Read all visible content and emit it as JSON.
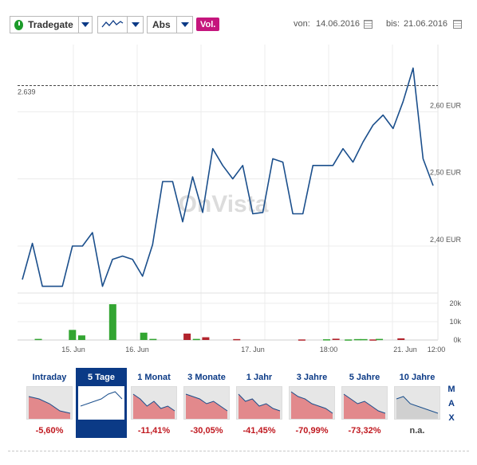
{
  "toolbar": {
    "exchange": "Tradegate",
    "price_type": "Abs",
    "vol_label": "Vol.",
    "from_label": "von:",
    "from_date": "14.06.2016",
    "to_label": "bis:",
    "to_date": "21.06.2016",
    "icons": {
      "live": "live-status-icon",
      "chart_type": "line-chart-icon",
      "calendar": "calendar-icon"
    }
  },
  "watermark": "OnVista",
  "colors": {
    "line": "#1b4f8c",
    "vol_up": "#33a532",
    "vol_down": "#b2242d",
    "accent": "#0b3a86",
    "vol_button": "#c5167d",
    "negative": "#c0181f"
  },
  "chart_data": [
    {
      "type": "line",
      "ylim": [
        2.33,
        2.7
      ],
      "yticks": [
        2.4,
        2.5,
        2.6
      ],
      "ytick_labels": [
        "2,40 EUR",
        "2,50 EUR",
        "2,60 EUR"
      ],
      "reference_line": {
        "value": 2.639,
        "label": "2.639",
        "style": "dashed"
      },
      "xtick_labels": [
        "15. Jun",
        "16. Jun",
        "17. Jun",
        "18:00",
        "21. Jun",
        "12:00"
      ],
      "grid": true,
      "values": [
        2.35,
        2.404,
        2.34,
        2.34,
        2.34,
        2.4,
        2.4,
        2.42,
        2.34,
        2.38,
        2.385,
        2.38,
        2.355,
        2.402,
        2.496,
        2.496,
        2.436,
        2.503,
        2.45,
        2.545,
        2.52,
        2.5,
        2.52,
        2.448,
        2.45,
        2.53,
        2.525,
        2.448,
        2.448,
        2.52,
        2.52,
        2.52,
        2.545,
        2.525,
        2.555,
        2.58,
        2.595,
        2.575,
        2.615,
        2.665,
        2.53,
        2.49
      ]
    },
    {
      "type": "bar",
      "ylim": [
        0,
        23000
      ],
      "ytick_labels": [
        "20k",
        "10k",
        "0k"
      ],
      "yticks": [
        20000,
        10000,
        0
      ],
      "bars": [
        {
          "x": 4,
          "value": 600,
          "dir": "up"
        },
        {
          "x": 15,
          "value": 5500,
          "dir": "up"
        },
        {
          "x": 18,
          "value": 2500,
          "dir": "up"
        },
        {
          "x": 28,
          "value": 19500,
          "dir": "up"
        },
        {
          "x": 38,
          "value": 4000,
          "dir": "up"
        },
        {
          "x": 41,
          "value": 600,
          "dir": "up"
        },
        {
          "x": 52,
          "value": 3500,
          "dir": "down"
        },
        {
          "x": 55,
          "value": 600,
          "dir": "up"
        },
        {
          "x": 58,
          "value": 1500,
          "dir": "down"
        },
        {
          "x": 68,
          "value": 500,
          "dir": "down"
        },
        {
          "x": 89,
          "value": 300,
          "dir": "down"
        },
        {
          "x": 97,
          "value": 400,
          "dir": "up"
        },
        {
          "x": 100,
          "value": 700,
          "dir": "down"
        },
        {
          "x": 104,
          "value": 300,
          "dir": "up"
        },
        {
          "x": 107,
          "value": 500,
          "dir": "up"
        },
        {
          "x": 109,
          "value": 500,
          "dir": "up"
        },
        {
          "x": 112,
          "value": 300,
          "dir": "down"
        },
        {
          "x": 114,
          "value": 600,
          "dir": "up"
        },
        {
          "x": 121,
          "value": 900,
          "dir": "down"
        }
      ],
      "x_range": [
        0,
        132
      ]
    }
  ],
  "periods": {
    "items": [
      {
        "label": "Intraday",
        "change": "-5,60%",
        "active": false,
        "trend": [
          0.2,
          0.3,
          0.5,
          0.8,
          0.9
        ]
      },
      {
        "label": "5 Tage",
        "change": "",
        "active": true,
        "trend": [
          0.6,
          0.5,
          0.4,
          0.3,
          0.1,
          0.0,
          0.3
        ]
      },
      {
        "label": "1 Monat",
        "change": "-11,41%",
        "active": false,
        "trend": [
          0.1,
          0.3,
          0.6,
          0.4,
          0.7,
          0.6,
          0.8
        ]
      },
      {
        "label": "3 Monate",
        "change": "-30,05%",
        "active": false,
        "trend": [
          0.1,
          0.2,
          0.3,
          0.5,
          0.4,
          0.6,
          0.8
        ]
      },
      {
        "label": "1 Jahr",
        "change": "-41,45%",
        "active": false,
        "trend": [
          0.1,
          0.4,
          0.3,
          0.6,
          0.5,
          0.7,
          0.8
        ]
      },
      {
        "label": "3 Jahre",
        "change": "-70,99%",
        "active": false,
        "trend": [
          0.0,
          0.2,
          0.3,
          0.5,
          0.6,
          0.7,
          0.9
        ]
      },
      {
        "label": "5 Jahre",
        "change": "-73,32%",
        "active": false,
        "trend": [
          0.1,
          0.3,
          0.5,
          0.4,
          0.6,
          0.8,
          0.9
        ]
      },
      {
        "label": "10 Jahre",
        "change": "n.a.",
        "active": false,
        "trend": [
          0.3,
          0.2,
          0.5,
          0.6,
          0.7,
          0.8,
          0.9
        ]
      }
    ],
    "max_label": "MAX"
  }
}
